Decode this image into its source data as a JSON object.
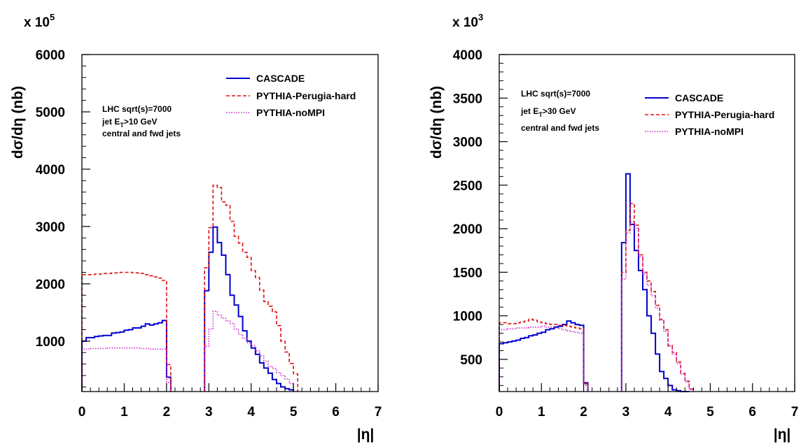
{
  "chart_data": [
    {
      "type": "line",
      "ylabel": "dσ/dη (nb)",
      "xlabel": "|η|",
      "yexponent": "x 10",
      "yexponent_power": "5",
      "xlim": [
        0,
        7
      ],
      "ylim": [
        120,
        6000
      ],
      "xticks": [
        "0",
        "1",
        "2",
        "3",
        "4",
        "5",
        "6",
        "7"
      ],
      "yticks": [
        {
          "value": 1000,
          "label": "1000"
        },
        {
          "value": 2000,
          "label": "2000"
        },
        {
          "value": 3000,
          "label": "3000"
        },
        {
          "value": 4000,
          "label": "4000"
        },
        {
          "value": 5000,
          "label": "5000"
        },
        {
          "value": 6000,
          "label": "6000"
        }
      ],
      "annotation": [
        "LHC sqrt(s)=7000",
        "jet  E",
        "T",
        ">10 GeV",
        "central and fwd jets"
      ],
      "legend_placement": "top-right",
      "series": [
        {
          "name": "CASCADE",
          "color": "#0000cc",
          "dash": "solid",
          "segments": [
            {
              "edges": [
                0,
                0.1,
                0.2,
                0.3,
                0.4,
                0.5,
                0.6,
                0.7,
                0.8,
                0.9,
                1.0,
                1.1,
                1.2,
                1.3,
                1.4,
                1.5,
                1.6,
                1.7,
                1.8,
                1.9,
                2.0,
                2.1
              ],
              "values": [
                1000,
                1060,
                1060,
                1080,
                1090,
                1100,
                1100,
                1140,
                1150,
                1160,
                1190,
                1200,
                1230,
                1230,
                1260,
                1300,
                1280,
                1300,
                1320,
                1360,
                370
              ]
            },
            {
              "edges": [
                2.9,
                3.0,
                3.1,
                3.2,
                3.3,
                3.4,
                3.5,
                3.6,
                3.7,
                3.8,
                3.9,
                4.0,
                4.1,
                4.2,
                4.3,
                4.4,
                4.5,
                4.6,
                4.7,
                4.8,
                4.9,
                5.0
              ],
              "values": [
                1880,
                2550,
                2990,
                2720,
                2500,
                2160,
                1800,
                1630,
                1430,
                1180,
                1000,
                880,
                770,
                620,
                530,
                440,
                330,
                260,
                200,
                170,
                150
              ]
            }
          ]
        },
        {
          "name": "PYTHIA-Perugia-hard",
          "color": "#dd1111",
          "dash": "dashed",
          "segments": [
            {
              "edges": [
                0,
                0.1,
                0.2,
                0.3,
                0.4,
                0.5,
                0.6,
                0.7,
                0.8,
                0.9,
                1.0,
                1.1,
                1.2,
                1.3,
                1.4,
                1.5,
                1.6,
                1.7,
                1.8,
                1.9,
                2.0,
                2.1
              ],
              "values": [
                2160,
                2160,
                2160,
                2170,
                2170,
                2180,
                2180,
                2190,
                2190,
                2200,
                2200,
                2200,
                2190,
                2190,
                2180,
                2160,
                2140,
                2120,
                2100,
                2060,
                590
              ]
            },
            {
              "edges": [
                2.9,
                3.0,
                3.1,
                3.2,
                3.3,
                3.4,
                3.5,
                3.6,
                3.7,
                3.8,
                3.9,
                4.0,
                4.1,
                4.2,
                4.3,
                4.4,
                4.5,
                4.6,
                4.7,
                4.8,
                4.9,
                5.0,
                5.1
              ],
              "values": [
                2280,
                2980,
                3720,
                3680,
                3430,
                3370,
                3090,
                2830,
                2710,
                2550,
                2460,
                2230,
                2110,
                1890,
                1690,
                1610,
                1510,
                1270,
                1000,
                810,
                610,
                430
              ]
            }
          ]
        },
        {
          "name": "PYTHIA-noMPI",
          "color": "#cc22cc",
          "dash": "dotted",
          "segments": [
            {
              "edges": [
                0,
                0.1,
                0.2,
                0.3,
                0.4,
                0.5,
                0.6,
                0.7,
                0.8,
                0.9,
                1.0,
                1.1,
                1.2,
                1.3,
                1.4,
                1.5,
                1.6,
                1.7,
                1.8,
                1.9,
                2.0,
                2.1
              ],
              "values": [
                860,
                860,
                870,
                870,
                870,
                870,
                880,
                880,
                880,
                880,
                880,
                880,
                880,
                880,
                870,
                870,
                860,
                860,
                860,
                860,
                280
              ]
            },
            {
              "edges": [
                2.9,
                3.0,
                3.1,
                3.2,
                3.3,
                3.4,
                3.5,
                3.6,
                3.7,
                3.8,
                3.9,
                4.0,
                4.1,
                4.2,
                4.3,
                4.4,
                4.5,
                4.6,
                4.7,
                4.8,
                4.9,
                5.0
              ],
              "values": [
                910,
                1210,
                1520,
                1450,
                1400,
                1350,
                1310,
                1210,
                1120,
                1050,
                970,
                920,
                830,
                740,
                650,
                560,
                520,
                450,
                400,
                340,
                260
              ]
            }
          ]
        }
      ]
    },
    {
      "type": "line",
      "ylabel": "dσ/dη (nb)",
      "xlabel": "|η|",
      "yexponent": "x 10",
      "yexponent_power": "3",
      "xlim": [
        0,
        7
      ],
      "ylim": [
        130,
        4000
      ],
      "xticks": [
        "0",
        "1",
        "2",
        "3",
        "4",
        "5",
        "6",
        "7"
      ],
      "yticks": [
        {
          "value": 500,
          "label": "500"
        },
        {
          "value": 1000,
          "label": "1000"
        },
        {
          "value": 1500,
          "label": "1500"
        },
        {
          "value": 2000,
          "label": "2000"
        },
        {
          "value": 2500,
          "label": "2500"
        },
        {
          "value": 3000,
          "label": "3000"
        },
        {
          "value": 3500,
          "label": "3500"
        },
        {
          "value": 4000,
          "label": "4000"
        }
      ],
      "annotation": [
        "LHC sqrt(s)=7000",
        "jet  E",
        "T",
        ">30 GeV",
        "central and fwd jets"
      ],
      "legend_placement": "top-right",
      "series": [
        {
          "name": "CASCADE",
          "color": "#0000cc",
          "dash": "solid",
          "segments": [
            {
              "edges": [
                0,
                0.1,
                0.2,
                0.3,
                0.4,
                0.5,
                0.6,
                0.7,
                0.8,
                0.9,
                1.0,
                1.1,
                1.2,
                1.3,
                1.4,
                1.5,
                1.6,
                1.7,
                1.8,
                1.9,
                2.0,
                2.1
              ],
              "values": [
                680,
                690,
                700,
                710,
                720,
                740,
                750,
                770,
                780,
                800,
                810,
                840,
                850,
                870,
                880,
                900,
                940,
                920,
                900,
                890,
                230
              ]
            },
            {
              "edges": [
                2.9,
                3.0,
                3.1,
                3.2,
                3.3,
                3.4,
                3.5,
                3.6,
                3.7,
                3.8,
                3.9,
                4.0,
                4.1,
                4.2,
                4.3,
                4.4,
                4.5
              ],
              "values": [
                1840,
                2630,
                2050,
                1750,
                1520,
                1300,
                1000,
                800,
                560,
                360,
                280,
                200,
                150,
                140,
                130,
                120
              ]
            }
          ]
        },
        {
          "name": "PYTHIA-Perugia-hard",
          "color": "#dd1111",
          "dash": "dashed",
          "segments": [
            {
              "edges": [
                0,
                0.1,
                0.2,
                0.3,
                0.4,
                0.5,
                0.6,
                0.7,
                0.8,
                0.9,
                1.0,
                1.1,
                1.2,
                1.3,
                1.4,
                1.5,
                1.6,
                1.7,
                1.8,
                1.9,
                2.0,
                2.1
              ],
              "values": [
                920,
                920,
                910,
                910,
                920,
                930,
                940,
                960,
                950,
                930,
                920,
                910,
                900,
                900,
                890,
                890,
                880,
                870,
                860,
                850,
                220
              ]
            },
            {
              "edges": [
                2.9,
                3.0,
                3.1,
                3.2,
                3.3,
                3.4,
                3.5,
                3.6,
                3.7,
                3.8,
                3.9,
                4.0,
                4.1,
                4.2,
                4.3,
                4.4,
                4.5,
                4.6
              ],
              "values": [
                1500,
                1980,
                2290,
                2040,
                1700,
                1500,
                1400,
                1280,
                1120,
                960,
                840,
                660,
                580,
                470,
                340,
                250,
                160
              ]
            }
          ]
        },
        {
          "name": "PYTHIA-noMPI",
          "color": "#cc22cc",
          "dash": "dotted",
          "segments": [
            {
              "edges": [
                0,
                0.1,
                0.2,
                0.3,
                0.4,
                0.5,
                0.6,
                0.7,
                0.8,
                0.9,
                1.0,
                1.1,
                1.2,
                1.3,
                1.4,
                1.5,
                1.6,
                1.7,
                1.8,
                1.9,
                2.0,
                2.1
              ],
              "values": [
                840,
                840,
                850,
                850,
                860,
                860,
                860,
                870,
                870,
                870,
                880,
                870,
                870,
                860,
                850,
                840,
                830,
                820,
                810,
                800,
                200
              ]
            },
            {
              "edges": [
                2.9,
                3.0,
                3.1,
                3.2,
                3.3,
                3.4,
                3.5,
                3.6,
                3.7,
                3.8,
                3.9,
                4.0,
                4.1,
                4.2,
                4.3,
                4.4,
                4.5,
                4.6
              ],
              "values": [
                1420,
                1950,
                2080,
                2010,
                1680,
                1480,
                1350,
                1230,
                1090,
                950,
                820,
                650,
                560,
                450,
                330,
                240,
                150
              ]
            }
          ]
        }
      ]
    }
  ]
}
